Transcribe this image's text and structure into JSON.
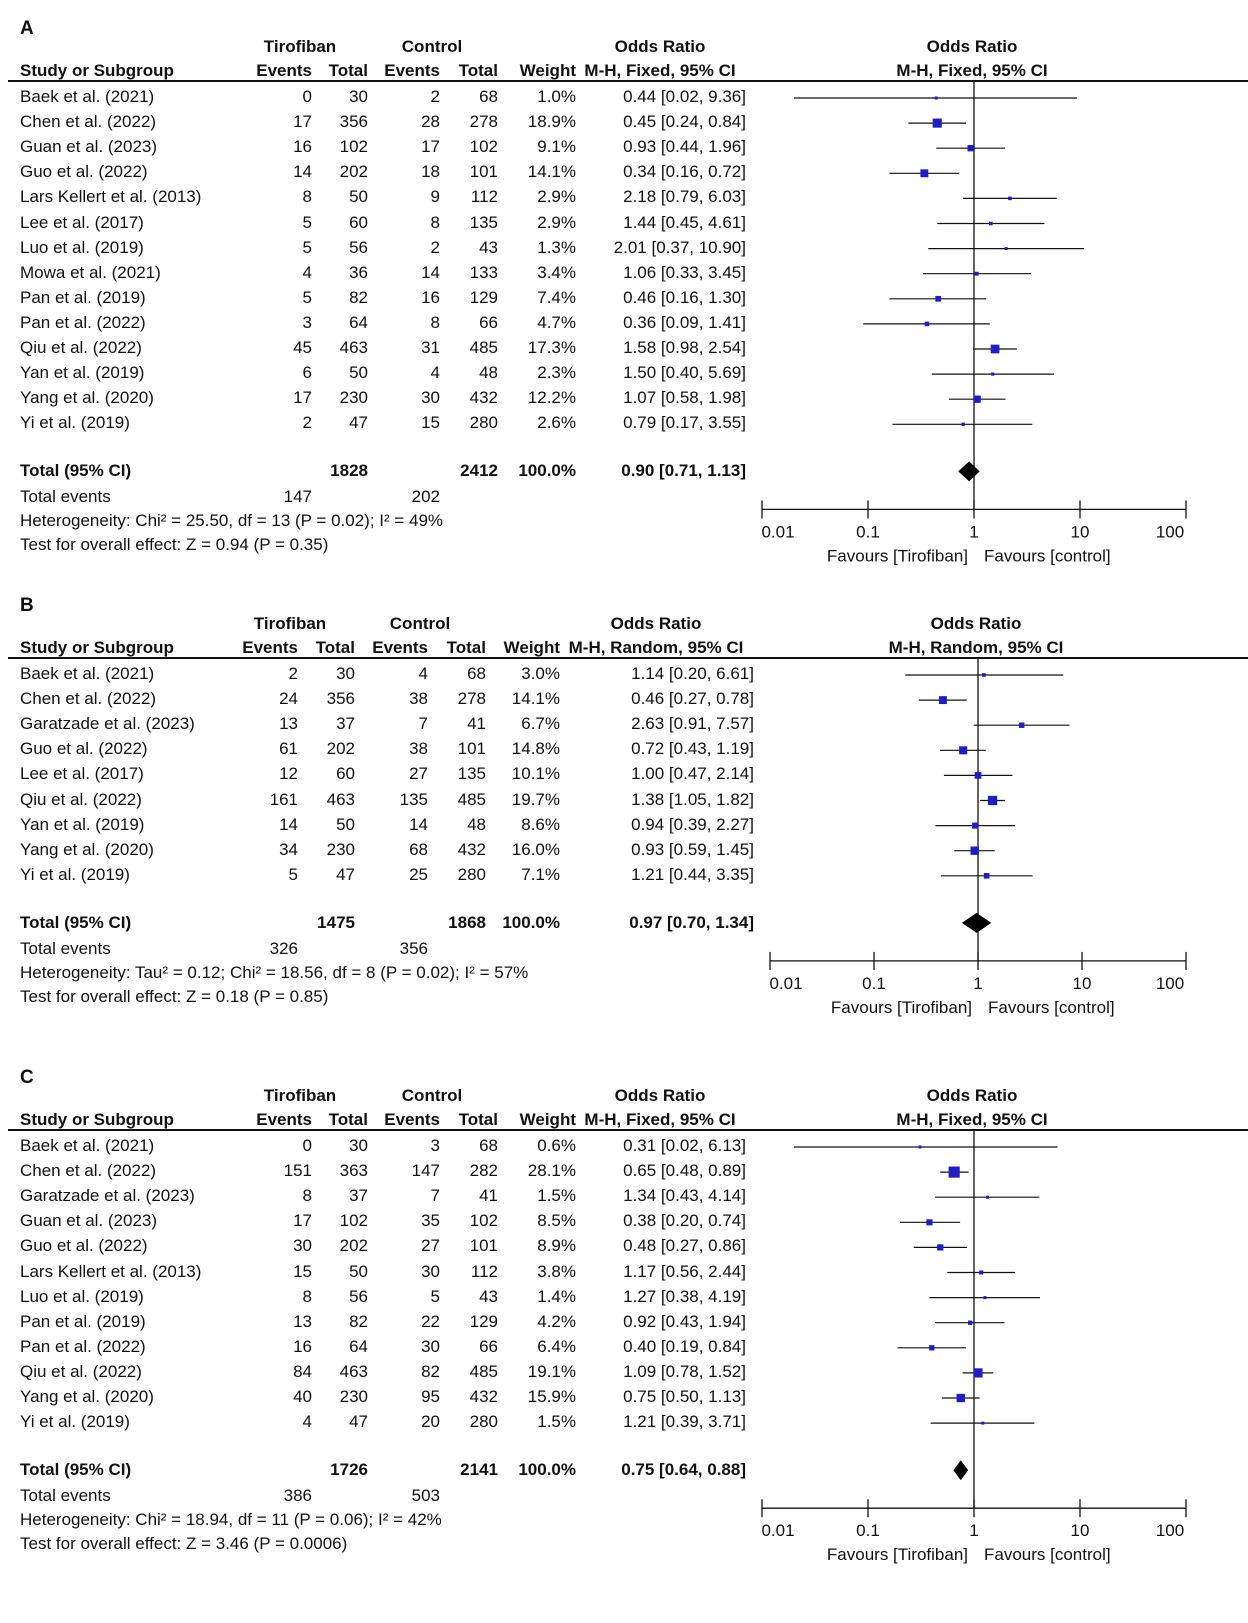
{
  "chart_data": [
    {
      "type": "forest",
      "panel_label": "A",
      "group_exp": "Tirofiban",
      "group_ctrl": "Control",
      "col_study": "Study or Subgroup",
      "col_events": "Events",
      "col_total": "Total",
      "col_weight": "Weight",
      "col_or": "Odds Ratio",
      "method": "M-H, Fixed, 95% CI",
      "axis_title": "Odds Ratio",
      "ticks": [
        "0.01",
        "0.1",
        "1",
        "10",
        "100"
      ],
      "tick_values": [
        0.01,
        0.1,
        1,
        10,
        100
      ],
      "favours_left": "Favours [Tirofiban]",
      "favours_right": "Favours [control]",
      "studies": [
        {
          "name": "Baek et al. (2021)",
          "e1": "0",
          "n1": "30",
          "e2": "2",
          "n2": "68",
          "weight": "1.0%",
          "ci": "0.44 [0.02, 9.36]",
          "or": 0.44,
          "lo": 0.02,
          "hi": 9.36,
          "w": 1.0
        },
        {
          "name": "Chen et al. (2022)",
          "e1": "17",
          "n1": "356",
          "e2": "28",
          "n2": "278",
          "weight": "18.9%",
          "ci": "0.45 [0.24, 0.84]",
          "or": 0.45,
          "lo": 0.24,
          "hi": 0.84,
          "w": 18.9
        },
        {
          "name": "Guan  et al. (2023)",
          "e1": "16",
          "n1": "102",
          "e2": "17",
          "n2": "102",
          "weight": "9.1%",
          "ci": "0.93 [0.44, 1.96]",
          "or": 0.93,
          "lo": 0.44,
          "hi": 1.96,
          "w": 9.1
        },
        {
          "name": "Guo et al. (2022)",
          "e1": "14",
          "n1": "202",
          "e2": "18",
          "n2": "101",
          "weight": "14.1%",
          "ci": "0.34 [0.16, 0.72]",
          "or": 0.34,
          "lo": 0.16,
          "hi": 0.72,
          "w": 14.1
        },
        {
          "name": "Lars Kellert et al. (2013)",
          "e1": "8",
          "n1": "50",
          "e2": "9",
          "n2": "112",
          "weight": "2.9%",
          "ci": "2.18 [0.79, 6.03]",
          "or": 2.18,
          "lo": 0.79,
          "hi": 6.03,
          "w": 2.9
        },
        {
          "name": "Lee et al. (2017)",
          "e1": "5",
          "n1": "60",
          "e2": "8",
          "n2": "135",
          "weight": "2.9%",
          "ci": "1.44 [0.45, 4.61]",
          "or": 1.44,
          "lo": 0.45,
          "hi": 4.61,
          "w": 2.9
        },
        {
          "name": "Luo et al. (2019)",
          "e1": "5",
          "n1": "56",
          "e2": "2",
          "n2": "43",
          "weight": "1.3%",
          "ci": "2.01 [0.37, 10.90]",
          "or": 2.01,
          "lo": 0.37,
          "hi": 10.9,
          "w": 1.3
        },
        {
          "name": "Mowa et al. (2021)",
          "e1": "4",
          "n1": "36",
          "e2": "14",
          "n2": "133",
          "weight": "3.4%",
          "ci": "1.06 [0.33, 3.45]",
          "or": 1.06,
          "lo": 0.33,
          "hi": 3.45,
          "w": 3.4
        },
        {
          "name": "Pan et al. (2019)",
          "e1": "5",
          "n1": "82",
          "e2": "16",
          "n2": "129",
          "weight": "7.4%",
          "ci": "0.46 [0.16, 1.30]",
          "or": 0.46,
          "lo": 0.16,
          "hi": 1.3,
          "w": 7.4
        },
        {
          "name": "Pan et al. (2022)",
          "e1": "3",
          "n1": "64",
          "e2": "8",
          "n2": "66",
          "weight": "4.7%",
          "ci": "0.36 [0.09, 1.41]",
          "or": 0.36,
          "lo": 0.09,
          "hi": 1.41,
          "w": 4.7
        },
        {
          "name": "Qiu et al. (2022)",
          "e1": "45",
          "n1": "463",
          "e2": "31",
          "n2": "485",
          "weight": "17.3%",
          "ci": "1.58 [0.98, 2.54]",
          "or": 1.58,
          "lo": 0.98,
          "hi": 2.54,
          "w": 17.3
        },
        {
          "name": "Yan et al. (2019)",
          "e1": "6",
          "n1": "50",
          "e2": "4",
          "n2": "48",
          "weight": "2.3%",
          "ci": "1.50 [0.40, 5.69]",
          "or": 1.5,
          "lo": 0.4,
          "hi": 5.69,
          "w": 2.3
        },
        {
          "name": "Yang et al. (2020)",
          "e1": "17",
          "n1": "230",
          "e2": "30",
          "n2": "432",
          "weight": "12.2%",
          "ci": "1.07 [0.58, 1.98]",
          "or": 1.07,
          "lo": 0.58,
          "hi": 1.98,
          "w": 12.2
        },
        {
          "name": "Yi et al. (2019)",
          "e1": "2",
          "n1": "47",
          "e2": "15",
          "n2": "280",
          "weight": "2.6%",
          "ci": "0.79 [0.17, 3.55]",
          "or": 0.79,
          "lo": 0.17,
          "hi": 3.55,
          "w": 2.6
        }
      ],
      "total": {
        "label": "Total (95% CI)",
        "n1": "1828",
        "n2": "2412",
        "weight": "100.0%",
        "ci": "0.90 [0.71, 1.13]",
        "or": 0.9,
        "lo": 0.71,
        "hi": 1.13
      },
      "events": {
        "label": "Total events",
        "e1": "147",
        "e2": "202"
      },
      "heterogeneity": "Heterogeneity: Chi² = 25.50, df = 13 (P = 0.02); I² = 49%",
      "overall": "Test for overall effect: Z = 0.94 (P = 0.35)"
    },
    {
      "type": "forest",
      "panel_label": "B",
      "group_exp": "Tirofiban",
      "group_ctrl": "Control",
      "col_study": "Study or Subgroup",
      "col_events": "Events",
      "col_total": "Total",
      "col_weight": "Weight",
      "col_or": "Odds Ratio",
      "method": "M-H, Random, 95% CI",
      "axis_title": "Odds Ratio",
      "ticks": [
        "0.01",
        "0.1",
        "1",
        "10",
        "100"
      ],
      "tick_values": [
        0.01,
        0.1,
        1,
        10,
        100
      ],
      "favours_left": "Favours [Tirofiban]",
      "favours_right": "Favours [control]",
      "studies": [
        {
          "name": "Baek et al. (2021)",
          "e1": "2",
          "n1": "30",
          "e2": "4",
          "n2": "68",
          "weight": "3.0%",
          "ci": "1.14 [0.20, 6.61]",
          "or": 1.14,
          "lo": 0.2,
          "hi": 6.61,
          "w": 3.0
        },
        {
          "name": "Chen et al. (2022)",
          "e1": "24",
          "n1": "356",
          "e2": "38",
          "n2": "278",
          "weight": "14.1%",
          "ci": "0.46 [0.27, 0.78]",
          "or": 0.46,
          "lo": 0.27,
          "hi": 0.78,
          "w": 14.1
        },
        {
          "name": "Garatzade  et al. (2023)",
          "e1": "13",
          "n1": "37",
          "e2": "7",
          "n2": "41",
          "weight": "6.7%",
          "ci": "2.63 [0.91, 7.57]",
          "or": 2.63,
          "lo": 0.91,
          "hi": 7.57,
          "w": 6.7
        },
        {
          "name": "Guo et al. (2022)",
          "e1": "61",
          "n1": "202",
          "e2": "38",
          "n2": "101",
          "weight": "14.8%",
          "ci": "0.72 [0.43, 1.19]",
          "or": 0.72,
          "lo": 0.43,
          "hi": 1.19,
          "w": 14.8
        },
        {
          "name": "Lee et al. (2017)",
          "e1": "12",
          "n1": "60",
          "e2": "27",
          "n2": "135",
          "weight": "10.1%",
          "ci": "1.00 [0.47, 2.14]",
          "or": 1.0,
          "lo": 0.47,
          "hi": 2.14,
          "w": 10.1
        },
        {
          "name": "Qiu et al. (2022)",
          "e1": "161",
          "n1": "463",
          "e2": "135",
          "n2": "485",
          "weight": "19.7%",
          "ci": "1.38 [1.05, 1.82]",
          "or": 1.38,
          "lo": 1.05,
          "hi": 1.82,
          "w": 19.7
        },
        {
          "name": "Yan et al. (2019)",
          "e1": "14",
          "n1": "50",
          "e2": "14",
          "n2": "48",
          "weight": "8.6%",
          "ci": "0.94 [0.39, 2.27]",
          "or": 0.94,
          "lo": 0.39,
          "hi": 2.27,
          "w": 8.6
        },
        {
          "name": "Yang et al. (2020)",
          "e1": "34",
          "n1": "230",
          "e2": "68",
          "n2": "432",
          "weight": "16.0%",
          "ci": "0.93 [0.59, 1.45]",
          "or": 0.93,
          "lo": 0.59,
          "hi": 1.45,
          "w": 16.0
        },
        {
          "name": "Yi et al. (2019)",
          "e1": "5",
          "n1": "47",
          "e2": "25",
          "n2": "280",
          "weight": "7.1%",
          "ci": "1.21 [0.44, 3.35]",
          "or": 1.21,
          "lo": 0.44,
          "hi": 3.35,
          "w": 7.1
        }
      ],
      "total": {
        "label": "Total (95% CI)",
        "n1": "1475",
        "n2": "1868",
        "weight": "100.0%",
        "ci": "0.97 [0.70, 1.34]",
        "or": 0.97,
        "lo": 0.7,
        "hi": 1.34
      },
      "events": {
        "label": "Total events",
        "e1": "326",
        "e2": "356"
      },
      "heterogeneity": "Heterogeneity: Tau² = 0.12; Chi² = 18.56, df = 8 (P = 0.02); I² = 57%",
      "overall": "Test for overall effect: Z = 0.18 (P = 0.85)"
    },
    {
      "type": "forest",
      "panel_label": "C",
      "group_exp": "Tirofiban",
      "group_ctrl": "Control",
      "col_study": "Study or Subgroup",
      "col_events": "Events",
      "col_total": "Total",
      "col_weight": "Weight",
      "col_or": "Odds Ratio",
      "method": "M-H, Fixed, 95% CI",
      "axis_title": "Odds Ratio",
      "ticks": [
        "0.01",
        "0.1",
        "1",
        "10",
        "100"
      ],
      "tick_values": [
        0.01,
        0.1,
        1,
        10,
        100
      ],
      "favours_left": "Favours [Tirofiban]",
      "favours_right": "Favours [control]",
      "studies": [
        {
          "name": "Baek et al. (2021)",
          "e1": "0",
          "n1": "30",
          "e2": "3",
          "n2": "68",
          "weight": "0.6%",
          "ci": "0.31 [0.02, 6.13]",
          "or": 0.31,
          "lo": 0.02,
          "hi": 6.13,
          "w": 0.6
        },
        {
          "name": "Chen et al. (2022)",
          "e1": "151",
          "n1": "363",
          "e2": "147",
          "n2": "282",
          "weight": "28.1%",
          "ci": "0.65 [0.48, 0.89]",
          "or": 0.65,
          "lo": 0.48,
          "hi": 0.89,
          "w": 28.1
        },
        {
          "name": "Garatzade  et al. (2023)",
          "e1": "8",
          "n1": "37",
          "e2": "7",
          "n2": "41",
          "weight": "1.5%",
          "ci": "1.34 [0.43, 4.14]",
          "or": 1.34,
          "lo": 0.43,
          "hi": 4.14,
          "w": 1.5
        },
        {
          "name": "Guan  et al. (2023)",
          "e1": "17",
          "n1": "102",
          "e2": "35",
          "n2": "102",
          "weight": "8.5%",
          "ci": "0.38 [0.20, 0.74]",
          "or": 0.38,
          "lo": 0.2,
          "hi": 0.74,
          "w": 8.5
        },
        {
          "name": "Guo et al. (2022)",
          "e1": "30",
          "n1": "202",
          "e2": "27",
          "n2": "101",
          "weight": "8.9%",
          "ci": "0.48 [0.27, 0.86]",
          "or": 0.48,
          "lo": 0.27,
          "hi": 0.86,
          "w": 8.9
        },
        {
          "name": "Lars Kellert et al. (2013)",
          "e1": "15",
          "n1": "50",
          "e2": "30",
          "n2": "112",
          "weight": "3.8%",
          "ci": "1.17 [0.56, 2.44]",
          "or": 1.17,
          "lo": 0.56,
          "hi": 2.44,
          "w": 3.8
        },
        {
          "name": "Luo et al. (2019)",
          "e1": "8",
          "n1": "56",
          "e2": "5",
          "n2": "43",
          "weight": "1.4%",
          "ci": "1.27 [0.38, 4.19]",
          "or": 1.27,
          "lo": 0.38,
          "hi": 4.19,
          "w": 1.4
        },
        {
          "name": "Pan et al. (2019)",
          "e1": "13",
          "n1": "82",
          "e2": "22",
          "n2": "129",
          "weight": "4.2%",
          "ci": "0.92 [0.43, 1.94]",
          "or": 0.92,
          "lo": 0.43,
          "hi": 1.94,
          "w": 4.2
        },
        {
          "name": "Pan et al. (2022)",
          "e1": "16",
          "n1": "64",
          "e2": "30",
          "n2": "66",
          "weight": "6.4%",
          "ci": "0.40 [0.19, 0.84]",
          "or": 0.4,
          "lo": 0.19,
          "hi": 0.84,
          "w": 6.4
        },
        {
          "name": "Qiu et al. (2022)",
          "e1": "84",
          "n1": "463",
          "e2": "82",
          "n2": "485",
          "weight": "19.1%",
          "ci": "1.09 [0.78, 1.52]",
          "or": 1.09,
          "lo": 0.78,
          "hi": 1.52,
          "w": 19.1
        },
        {
          "name": "Yang et al. (2020)",
          "e1": "40",
          "n1": "230",
          "e2": "95",
          "n2": "432",
          "weight": "15.9%",
          "ci": "0.75 [0.50, 1.13]",
          "or": 0.75,
          "lo": 0.5,
          "hi": 1.13,
          "w": 15.9
        },
        {
          "name": "Yi et al. (2019)",
          "e1": "4",
          "n1": "47",
          "e2": "20",
          "n2": "280",
          "weight": "1.5%",
          "ci": "1.21 [0.39, 3.71]",
          "or": 1.21,
          "lo": 0.39,
          "hi": 3.71,
          "w": 1.5
        }
      ],
      "total": {
        "label": "Total (95% CI)",
        "n1": "1726",
        "n2": "2141",
        "weight": "100.0%",
        "ci": "0.75 [0.64, 0.88]",
        "or": 0.75,
        "lo": 0.64,
        "hi": 0.88
      },
      "events": {
        "label": "Total events",
        "e1": "386",
        "e2": "503"
      },
      "heterogeneity": "Heterogeneity: Chi² = 18.94, df = 11 (P = 0.06); I² = 42%",
      "overall": "Test for overall effect: Z = 3.46 (P = 0.0006)"
    }
  ]
}
